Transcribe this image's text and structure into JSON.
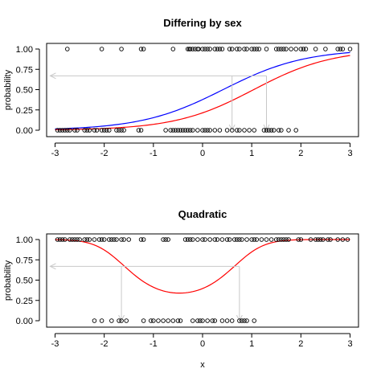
{
  "chart_data": [
    {
      "type": "scatter",
      "title": "Differing by sex",
      "xlabel": "",
      "ylabel": "probability",
      "xlim": [
        -3,
        3
      ],
      "ylim": [
        0,
        1
      ],
      "x_ticks": [
        "-3",
        "-2",
        "-1",
        "0",
        "1",
        "2",
        "3"
      ],
      "y_ticks": [
        "0.00",
        "0.25",
        "0.50",
        "0.75",
        "1.00"
      ],
      "grid": false,
      "points": {
        "y1_x": [
          -2.75,
          -2.05,
          -1.65,
          -1.25,
          -1.2,
          -0.6,
          -0.3,
          -0.27,
          -0.25,
          -0.2,
          -0.15,
          -0.1,
          -0.08,
          0.0,
          0.05,
          0.1,
          0.15,
          0.25,
          0.3,
          0.35,
          0.4,
          0.55,
          0.6,
          0.7,
          0.75,
          0.85,
          0.9,
          1.0,
          1.05,
          1.1,
          1.15,
          1.3,
          1.5,
          1.55,
          1.6,
          1.65,
          1.7,
          1.8,
          1.9,
          2.0,
          2.05,
          2.1,
          2.3,
          2.5,
          2.75,
          2.8,
          2.85,
          3.0
        ],
        "y0_x": [
          -2.95,
          -2.9,
          -2.85,
          -2.8,
          -2.75,
          -2.7,
          -2.6,
          -2.55,
          -2.4,
          -2.35,
          -2.3,
          -2.2,
          -2.15,
          -2.05,
          -2.0,
          -1.95,
          -1.9,
          -1.75,
          -1.7,
          -1.65,
          -1.6,
          -1.3,
          -1.25,
          -0.75,
          -0.65,
          -0.6,
          -0.55,
          -0.5,
          -0.45,
          -0.4,
          -0.35,
          -0.3,
          -0.25,
          -0.2,
          -0.1,
          0.0,
          0.05,
          0.1,
          0.15,
          0.25,
          0.35,
          0.5,
          0.6,
          0.7,
          0.75,
          0.85,
          0.95,
          1.05,
          1.25,
          1.3,
          1.35,
          1.4,
          1.45,
          1.55,
          1.6,
          1.75,
          1.9
        ]
      },
      "curves": [
        {
          "color": "#0000ff",
          "model": "logistic",
          "intercept": -0.5,
          "slope": 1.2
        },
        {
          "color": "#ff0000",
          "model": "logistic",
          "intercept": -1.3,
          "slope": 1.25
        }
      ],
      "arrows": [
        {
          "kind": "horizontal",
          "y": 0.67
        },
        {
          "kind": "vertical",
          "x": 0.6,
          "y_from": 0.67,
          "y_to": 0.0
        },
        {
          "kind": "vertical",
          "x": 1.3,
          "y_from": 0.67,
          "y_to": 0.0
        }
      ]
    },
    {
      "type": "scatter",
      "title": "Quadratic",
      "xlabel": "x",
      "ylabel": "probability",
      "xlim": [
        -3,
        3
      ],
      "ylim": [
        0,
        1
      ],
      "x_ticks": [
        "-3",
        "-2",
        "-1",
        "0",
        "1",
        "2",
        "3"
      ],
      "y_ticks": [
        "0.00",
        "0.25",
        "0.50",
        "0.75",
        "1.00"
      ],
      "grid": false,
      "points": {
        "y1_x": [
          -2.95,
          -2.9,
          -2.85,
          -2.8,
          -2.7,
          -2.65,
          -2.6,
          -2.55,
          -2.5,
          -2.4,
          -2.35,
          -2.3,
          -2.2,
          -2.1,
          -2.05,
          -2.0,
          -1.9,
          -1.85,
          -1.8,
          -1.75,
          -1.65,
          -1.6,
          -1.5,
          -1.25,
          -1.2,
          -0.8,
          -0.75,
          -0.7,
          -0.35,
          -0.3,
          -0.25,
          -0.2,
          -0.1,
          0.0,
          0.05,
          0.15,
          0.25,
          0.3,
          0.4,
          0.5,
          0.55,
          0.65,
          0.7,
          0.75,
          0.8,
          0.9,
          1.0,
          1.05,
          1.1,
          1.2,
          1.3,
          1.4,
          1.5,
          1.55,
          1.6,
          1.65,
          1.7,
          1.75,
          1.95,
          2.0,
          2.2,
          2.3,
          2.35,
          2.4,
          2.45,
          2.55,
          2.6,
          2.75,
          2.85,
          2.95
        ],
        "y0_x": [
          -2.2,
          -2.05,
          -1.85,
          -1.7,
          -1.65,
          -1.55,
          -1.2,
          -1.05,
          -1.0,
          -0.9,
          -0.8,
          -0.7,
          -0.6,
          -0.5,
          -0.45,
          -0.2,
          -0.1,
          -0.05,
          0.0,
          0.1,
          0.2,
          0.25,
          0.4,
          0.5,
          0.6,
          0.75,
          0.8,
          0.85,
          0.9,
          1.05
        ]
      },
      "curves": [
        {
          "color": "#ff0000",
          "model": "quadratic-logistic",
          "xmin": -0.47,
          "ymin": 0.34,
          "curvature": 0.5
        }
      ],
      "arrows": [
        {
          "kind": "horizontal",
          "y": 0.67
        },
        {
          "kind": "vertical",
          "x": -1.65,
          "y_from": 0.67,
          "y_to": 0.0
        },
        {
          "kind": "vertical",
          "x": 0.75,
          "y_from": 0.67,
          "y_to": 0.0
        }
      ]
    }
  ]
}
